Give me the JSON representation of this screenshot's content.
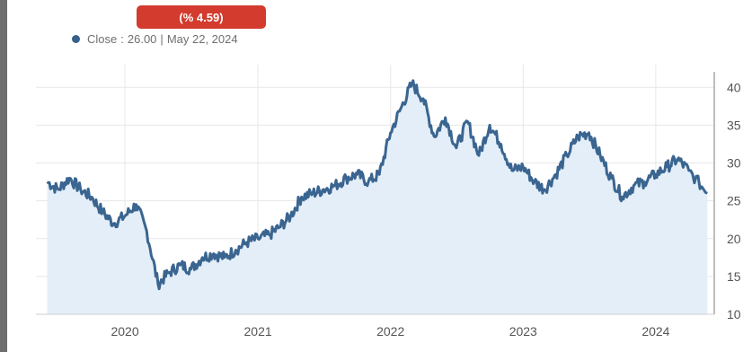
{
  "badge": {
    "text": "(% 4.59)",
    "color": "#d23b2d"
  },
  "legend": {
    "label": "Close",
    "separator": ":",
    "value": "26.00",
    "divider": "|",
    "date": "May 22, 2024",
    "dot_color": "#35608a"
  },
  "chart_data": {
    "type": "area",
    "series": [
      {
        "x": [
          "2019-06-01",
          "2019-07-01",
          "2019-08-01",
          "2019-09-01",
          "2019-10-01",
          "2019-11-01",
          "2019-12-01",
          "2020-01-01",
          "2020-02-01",
          "2020-03-01",
          "2020-04-01",
          "2020-05-01",
          "2020-06-01",
          "2020-07-01",
          "2020-08-01",
          "2020-09-01",
          "2020-10-01",
          "2020-11-01",
          "2020-12-01",
          "2021-01-01",
          "2021-02-01",
          "2021-03-01",
          "2021-04-01",
          "2021-05-01",
          "2021-06-01",
          "2021-07-01",
          "2021-08-01",
          "2021-09-01",
          "2021-10-01",
          "2021-11-01",
          "2021-12-01",
          "2022-01-01",
          "2022-02-01",
          "2022-03-01",
          "2022-04-01",
          "2022-05-01",
          "2022-06-01",
          "2022-07-01",
          "2022-08-01",
          "2022-09-01",
          "2022-10-01",
          "2022-11-01",
          "2022-12-01",
          "2023-01-01",
          "2023-02-01",
          "2023-03-01",
          "2023-04-01",
          "2023-05-01",
          "2023-06-01",
          "2023-07-01",
          "2023-08-01",
          "2023-09-01",
          "2023-10-01",
          "2023-11-01",
          "2023-12-01",
          "2024-01-01",
          "2024-02-01",
          "2024-03-01",
          "2024-04-01",
          "2024-05-22"
        ],
        "y": [
          27.5,
          26.5,
          28.0,
          26.5,
          25.5,
          23.5,
          22.0,
          23.0,
          24.5,
          21.0,
          14.0,
          15.5,
          16.5,
          16.0,
          17.5,
          18.0,
          17.5,
          18.5,
          19.5,
          20.0,
          20.5,
          21.5,
          23.0,
          25.5,
          26.0,
          26.5,
          27.0,
          28.0,
          28.5,
          27.5,
          28.5,
          34.0,
          37.5,
          40.5,
          38.5,
          33.5,
          36.0,
          32.0,
          35.5,
          31.0,
          35.0,
          32.5,
          29.0,
          29.5,
          27.5,
          26.5,
          28.5,
          31.0,
          33.5,
          34.0,
          31.0,
          28.0,
          25.5,
          27.0,
          27.5,
          28.5,
          29.5,
          30.5,
          29.0,
          26.0
        ]
      }
    ],
    "x_tick_labels": [
      "2020",
      "2021",
      "2022",
      "2023",
      "2024"
    ],
    "y_ticks": [
      10,
      15,
      20,
      25,
      30,
      35,
      40
    ],
    "ylim": [
      10,
      43
    ],
    "xlim": [
      "2019-05-01",
      "2024-06-10"
    ],
    "grid": true,
    "line_color": "#3a6590",
    "fill_color": "#e3eef8",
    "y_axis_position": "right"
  }
}
